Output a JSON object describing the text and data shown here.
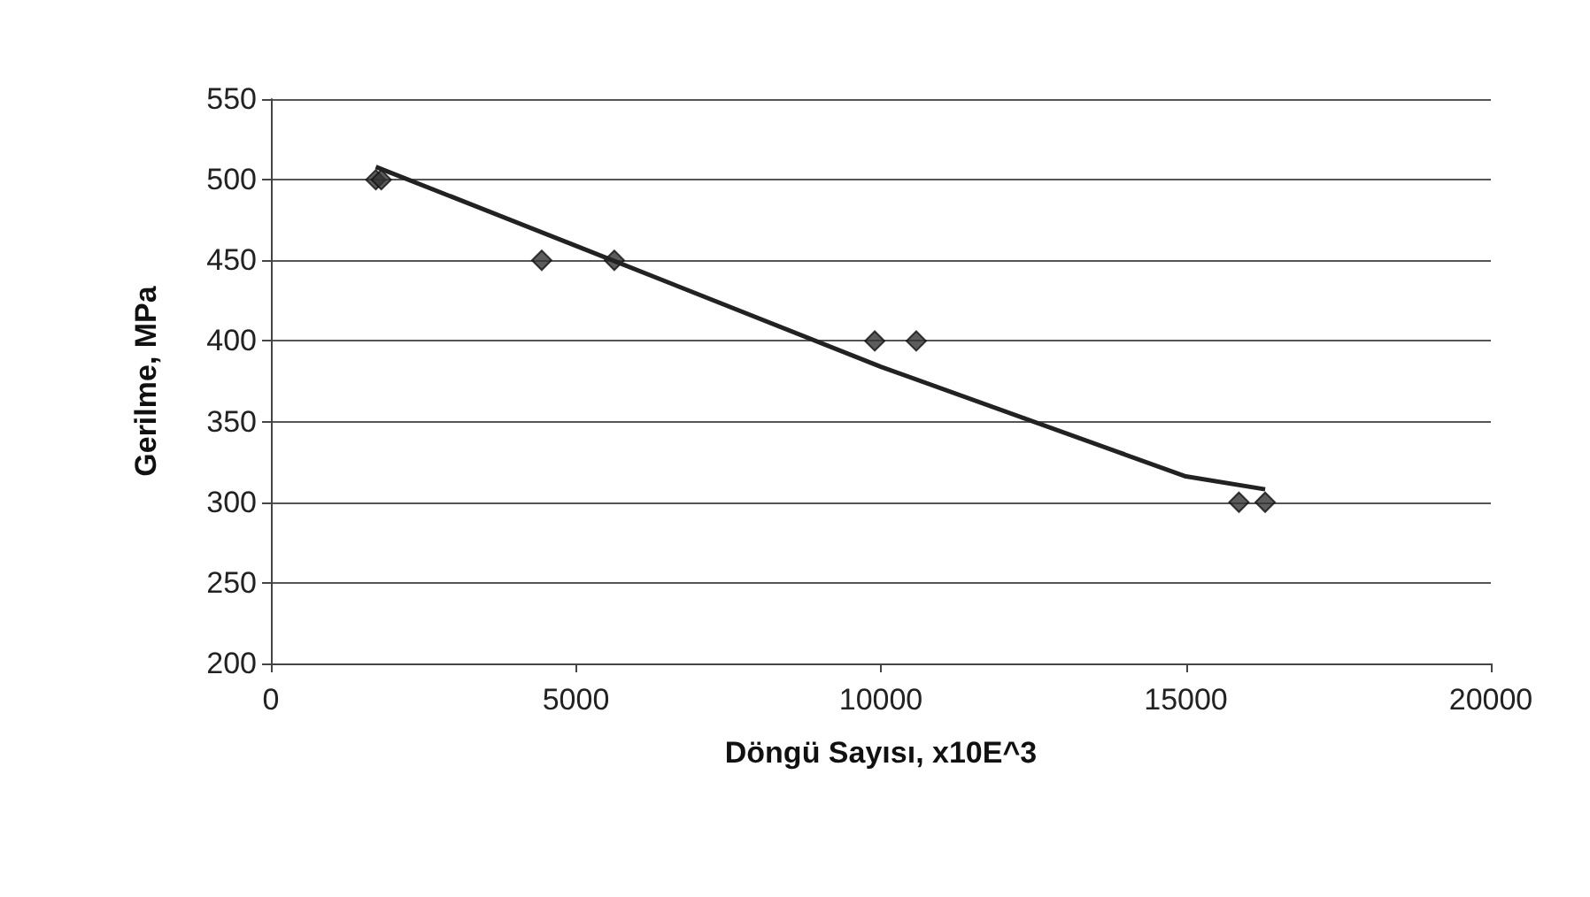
{
  "chart_data": {
    "type": "scatter",
    "xlabel": "Döngü Sayısı, x10E^3",
    "ylabel": "Gerilme, MPa",
    "xlim": [
      0,
      20000
    ],
    "xticks": [
      0,
      5000,
      10000,
      15000,
      20000
    ],
    "ylim": [
      200,
      550
    ],
    "yticks": [
      200,
      250,
      300,
      350,
      400,
      450,
      500,
      550
    ],
    "grid": "y",
    "marker": "diamond",
    "series": [
      {
        "color": "#333333",
        "x": [
          1720,
          1810,
          4440,
          5630,
          9900,
          10580,
          15870,
          16300
        ],
        "values": [
          500,
          500,
          450,
          450,
          400,
          400,
          300,
          300
        ]
      },
      {
        "type": "line",
        "color": "#222222",
        "marker": "none",
        "x": [
          1720,
          5000,
          10000,
          15000,
          16300
        ],
        "values": [
          508,
          459,
          384,
          316,
          308
        ]
      }
    ]
  }
}
